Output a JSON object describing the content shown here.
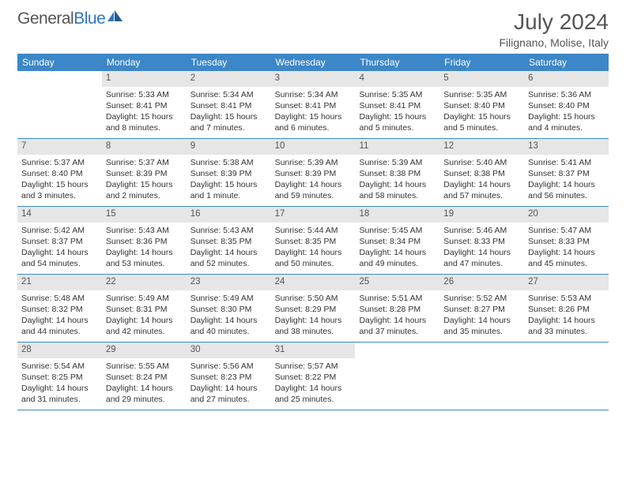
{
  "brand": {
    "part1": "General",
    "part2": "Blue"
  },
  "title": "July 2024",
  "location": "Filignano, Molise, Italy",
  "colors": {
    "header_bg": "#3c87c7",
    "header_text": "#ffffff",
    "num_bg": "#e6e6e6",
    "divider": "#3c87c7",
    "body_text": "#333333"
  },
  "dayNames": [
    "Sunday",
    "Monday",
    "Tuesday",
    "Wednesday",
    "Thursday",
    "Friday",
    "Saturday"
  ],
  "weeks": [
    [
      null,
      {
        "n": "1",
        "sr": "5:33 AM",
        "ss": "8:41 PM",
        "dl": "15 hours and 8 minutes."
      },
      {
        "n": "2",
        "sr": "5:34 AM",
        "ss": "8:41 PM",
        "dl": "15 hours and 7 minutes."
      },
      {
        "n": "3",
        "sr": "5:34 AM",
        "ss": "8:41 PM",
        "dl": "15 hours and 6 minutes."
      },
      {
        "n": "4",
        "sr": "5:35 AM",
        "ss": "8:41 PM",
        "dl": "15 hours and 5 minutes."
      },
      {
        "n": "5",
        "sr": "5:35 AM",
        "ss": "8:40 PM",
        "dl": "15 hours and 5 minutes."
      },
      {
        "n": "6",
        "sr": "5:36 AM",
        "ss": "8:40 PM",
        "dl": "15 hours and 4 minutes."
      }
    ],
    [
      {
        "n": "7",
        "sr": "5:37 AM",
        "ss": "8:40 PM",
        "dl": "15 hours and 3 minutes."
      },
      {
        "n": "8",
        "sr": "5:37 AM",
        "ss": "8:39 PM",
        "dl": "15 hours and 2 minutes."
      },
      {
        "n": "9",
        "sr": "5:38 AM",
        "ss": "8:39 PM",
        "dl": "15 hours and 1 minute."
      },
      {
        "n": "10",
        "sr": "5:39 AM",
        "ss": "8:39 PM",
        "dl": "14 hours and 59 minutes."
      },
      {
        "n": "11",
        "sr": "5:39 AM",
        "ss": "8:38 PM",
        "dl": "14 hours and 58 minutes."
      },
      {
        "n": "12",
        "sr": "5:40 AM",
        "ss": "8:38 PM",
        "dl": "14 hours and 57 minutes."
      },
      {
        "n": "13",
        "sr": "5:41 AM",
        "ss": "8:37 PM",
        "dl": "14 hours and 56 minutes."
      }
    ],
    [
      {
        "n": "14",
        "sr": "5:42 AM",
        "ss": "8:37 PM",
        "dl": "14 hours and 54 minutes."
      },
      {
        "n": "15",
        "sr": "5:43 AM",
        "ss": "8:36 PM",
        "dl": "14 hours and 53 minutes."
      },
      {
        "n": "16",
        "sr": "5:43 AM",
        "ss": "8:35 PM",
        "dl": "14 hours and 52 minutes."
      },
      {
        "n": "17",
        "sr": "5:44 AM",
        "ss": "8:35 PM",
        "dl": "14 hours and 50 minutes."
      },
      {
        "n": "18",
        "sr": "5:45 AM",
        "ss": "8:34 PM",
        "dl": "14 hours and 49 minutes."
      },
      {
        "n": "19",
        "sr": "5:46 AM",
        "ss": "8:33 PM",
        "dl": "14 hours and 47 minutes."
      },
      {
        "n": "20",
        "sr": "5:47 AM",
        "ss": "8:33 PM",
        "dl": "14 hours and 45 minutes."
      }
    ],
    [
      {
        "n": "21",
        "sr": "5:48 AM",
        "ss": "8:32 PM",
        "dl": "14 hours and 44 minutes."
      },
      {
        "n": "22",
        "sr": "5:49 AM",
        "ss": "8:31 PM",
        "dl": "14 hours and 42 minutes."
      },
      {
        "n": "23",
        "sr": "5:49 AM",
        "ss": "8:30 PM",
        "dl": "14 hours and 40 minutes."
      },
      {
        "n": "24",
        "sr": "5:50 AM",
        "ss": "8:29 PM",
        "dl": "14 hours and 38 minutes."
      },
      {
        "n": "25",
        "sr": "5:51 AM",
        "ss": "8:28 PM",
        "dl": "14 hours and 37 minutes."
      },
      {
        "n": "26",
        "sr": "5:52 AM",
        "ss": "8:27 PM",
        "dl": "14 hours and 35 minutes."
      },
      {
        "n": "27",
        "sr": "5:53 AM",
        "ss": "8:26 PM",
        "dl": "14 hours and 33 minutes."
      }
    ],
    [
      {
        "n": "28",
        "sr": "5:54 AM",
        "ss": "8:25 PM",
        "dl": "14 hours and 31 minutes."
      },
      {
        "n": "29",
        "sr": "5:55 AM",
        "ss": "8:24 PM",
        "dl": "14 hours and 29 minutes."
      },
      {
        "n": "30",
        "sr": "5:56 AM",
        "ss": "8:23 PM",
        "dl": "14 hours and 27 minutes."
      },
      {
        "n": "31",
        "sr": "5:57 AM",
        "ss": "8:22 PM",
        "dl": "14 hours and 25 minutes."
      },
      null,
      null,
      null
    ]
  ],
  "labels": {
    "sunrise": "Sunrise:",
    "sunset": "Sunset:",
    "daylight": "Daylight:"
  }
}
